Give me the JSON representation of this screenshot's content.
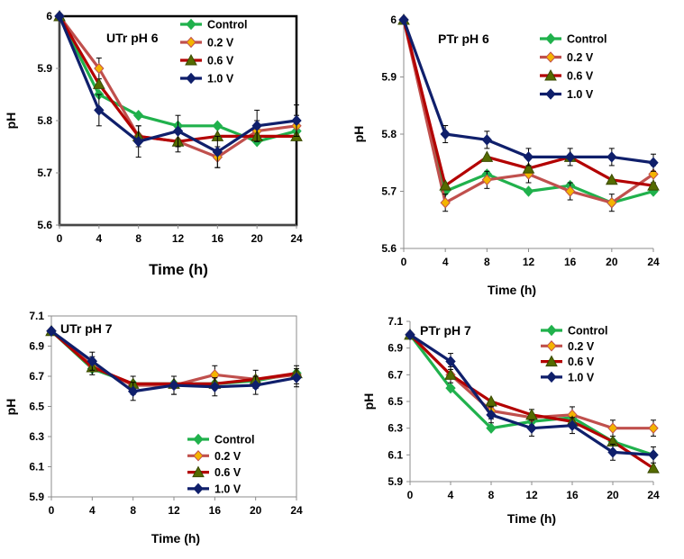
{
  "colors": {
    "Control": "#20b14c",
    "0.2 V": "#c0504d",
    "0.6 V": "#b30000",
    "1.0 V": "#0f1f6b",
    "marker_0.2 V": "#f4b400",
    "marker_0.6 V": "#556b00"
  },
  "marker_shapes": {
    "Control": "diamond-icon",
    "0.2 V": "diamond-icon",
    "0.6 V": "triangle-icon",
    "1.0 V": "diamond-icon"
  },
  "chart_data": [
    {
      "type": "line",
      "title": "UTr pH 6",
      "xlabel": "Time (h)",
      "ylabel": "pH",
      "x": [
        0,
        4,
        8,
        12,
        16,
        20,
        24
      ],
      "xticks": [
        "0",
        "4",
        "8",
        "12",
        "16",
        "20",
        "24"
      ],
      "yticks": [
        "5.6",
        "5.7",
        "5.8",
        "5.9",
        "6"
      ],
      "ylim": [
        5.6,
        6.0
      ],
      "legend_placement": "top-right",
      "series": [
        {
          "name": "Control",
          "values": [
            6.0,
            5.85,
            5.81,
            5.79,
            5.79,
            5.76,
            5.78
          ],
          "errors": [
            0,
            0,
            0,
            0,
            0,
            0,
            0
          ]
        },
        {
          "name": "0.2 V",
          "values": [
            6.0,
            5.9,
            5.77,
            5.76,
            5.73,
            5.78,
            5.79
          ],
          "errors": [
            0,
            0.02,
            0.02,
            0.02,
            0.02,
            0.02,
            0.02
          ]
        },
        {
          "name": "0.6 V",
          "values": [
            6.0,
            5.87,
            5.77,
            5.76,
            5.77,
            5.77,
            5.77
          ],
          "errors": [
            0,
            0,
            0,
            0,
            0,
            0,
            0
          ]
        },
        {
          "name": "1.0 V",
          "values": [
            6.0,
            5.82,
            5.76,
            5.78,
            5.74,
            5.79,
            5.8
          ],
          "errors": [
            0,
            0.03,
            0.03,
            0.03,
            0.03,
            0.03,
            0.03
          ]
        }
      ]
    },
    {
      "type": "line",
      "title": "PTr pH 6",
      "xlabel": "Time (h)",
      "ylabel": "pH",
      "x": [
        0,
        4,
        8,
        12,
        16,
        20,
        24
      ],
      "xticks": [
        "0",
        "4",
        "8",
        "12",
        "16",
        "20",
        "24"
      ],
      "yticks": [
        "5.6",
        "5.7",
        "5.8",
        "5.9",
        "6"
      ],
      "ylim": [
        5.6,
        6.0
      ],
      "legend_placement": "top-right",
      "series": [
        {
          "name": "Control",
          "values": [
            6.0,
            5.7,
            5.73,
            5.7,
            5.71,
            5.68,
            5.7
          ],
          "errors": [
            0,
            0,
            0,
            0,
            0,
            0,
            0
          ]
        },
        {
          "name": "0.2 V",
          "values": [
            6.0,
            5.68,
            5.72,
            5.73,
            5.7,
            5.68,
            5.73
          ],
          "errors": [
            0,
            0.015,
            0.015,
            0.015,
            0.015,
            0.015,
            0.015
          ]
        },
        {
          "name": "0.6 V",
          "values": [
            6.0,
            5.71,
            5.76,
            5.74,
            5.76,
            5.72,
            5.71
          ],
          "errors": [
            0,
            0,
            0,
            0,
            0,
            0,
            0
          ]
        },
        {
          "name": "1.0 V",
          "values": [
            6.0,
            5.8,
            5.79,
            5.76,
            5.76,
            5.76,
            5.75
          ],
          "errors": [
            0,
            0.015,
            0.015,
            0.015,
            0.015,
            0.015,
            0.015
          ]
        }
      ]
    },
    {
      "type": "line",
      "title": "UTr pH 7",
      "xlabel": "Time (h)",
      "ylabel": "pH",
      "x": [
        0,
        4,
        8,
        12,
        16,
        20,
        24
      ],
      "xticks": [
        "0",
        "4",
        "8",
        "12",
        "16",
        "20",
        "24"
      ],
      "yticks": [
        "5.9",
        "6.1",
        "6.3",
        "6.5",
        "6.7",
        "6.9",
        "7.1"
      ],
      "ylim": [
        5.9,
        7.1
      ],
      "legend_placement": "bottom-right",
      "series": [
        {
          "name": "Control",
          "values": [
            7.0,
            6.75,
            6.65,
            6.65,
            6.65,
            6.67,
            6.72
          ],
          "errors": [
            0,
            0,
            0,
            0,
            0,
            0,
            0
          ]
        },
        {
          "name": "0.2 V",
          "values": [
            7.0,
            6.77,
            6.64,
            6.64,
            6.71,
            6.68,
            6.71
          ],
          "errors": [
            0,
            0.06,
            0.06,
            0.06,
            0.06,
            0.06,
            0.06
          ]
        },
        {
          "name": "0.6 V",
          "values": [
            7.0,
            6.76,
            6.65,
            6.65,
            6.65,
            6.68,
            6.72
          ],
          "errors": [
            0,
            0,
            0,
            0,
            0,
            0,
            0
          ]
        },
        {
          "name": "1.0 V",
          "values": [
            7.0,
            6.8,
            6.6,
            6.64,
            6.63,
            6.64,
            6.69
          ],
          "errors": [
            0,
            0.06,
            0.06,
            0.06,
            0.06,
            0.06,
            0.06
          ]
        }
      ]
    },
    {
      "type": "line",
      "title": "PTr pH 7",
      "xlabel": "Time (h)",
      "ylabel": "pH",
      "x": [
        0,
        4,
        8,
        12,
        16,
        20,
        24
      ],
      "xticks": [
        "0",
        "4",
        "8",
        "12",
        "16",
        "20",
        "24"
      ],
      "yticks": [
        "5.9",
        "6.1",
        "6.3",
        "6.5",
        "6.7",
        "6.9",
        "7.1"
      ],
      "ylim": [
        5.9,
        7.1
      ],
      "legend_placement": "top-left",
      "series": [
        {
          "name": "Control",
          "values": [
            7.0,
            6.6,
            6.3,
            6.35,
            6.38,
            6.2,
            6.1
          ],
          "errors": [
            0,
            0,
            0,
            0,
            0,
            0,
            0
          ]
        },
        {
          "name": "0.2 V",
          "values": [
            7.0,
            6.7,
            6.43,
            6.38,
            6.4,
            6.3,
            6.3
          ],
          "errors": [
            0,
            0.06,
            0.06,
            0.06,
            0.06,
            0.06,
            0.06
          ]
        },
        {
          "name": "0.6 V",
          "values": [
            7.0,
            6.7,
            6.5,
            6.4,
            6.35,
            6.2,
            6.0
          ],
          "errors": [
            0,
            0,
            0,
            0,
            0,
            0,
            0
          ]
        },
        {
          "name": "1.0 V",
          "values": [
            7.0,
            6.8,
            6.4,
            6.3,
            6.32,
            6.12,
            6.1
          ],
          "errors": [
            0,
            0.06,
            0.06,
            0.06,
            0.06,
            0.06,
            0.06
          ]
        }
      ]
    }
  ]
}
